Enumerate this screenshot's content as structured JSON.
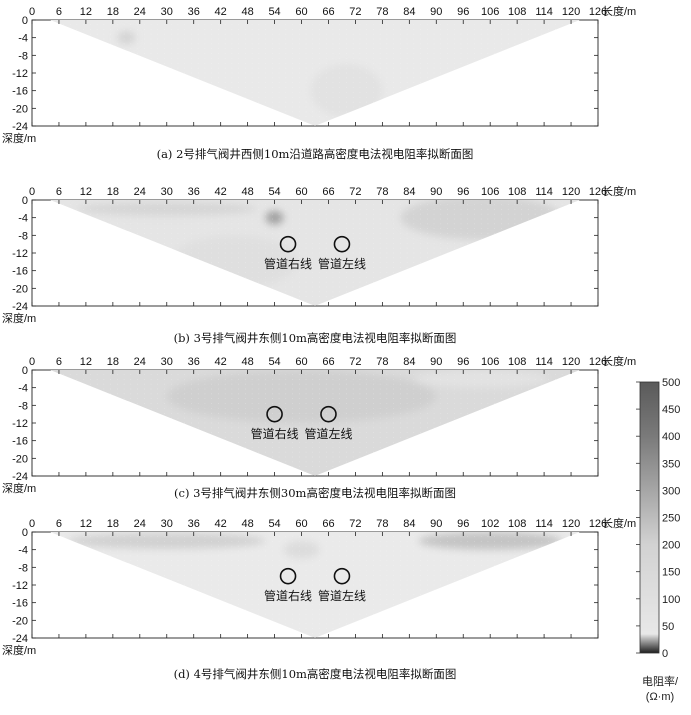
{
  "chart_data": [
    {
      "type": "heatmap",
      "panel": "a",
      "caption": "(a) 2号排气阀井西侧10m沿道路高密度电法视电阻率拟断面图",
      "xlabel": "长度/m",
      "ylabel": "深度/m",
      "x_ticks": [
        "0",
        "6",
        "12",
        "18",
        "24",
        "30",
        "36",
        "42",
        "48",
        "54",
        "60",
        "66",
        "72",
        "78",
        "84",
        "90",
        "96",
        "106",
        "108",
        "114",
        "120",
        "126"
      ],
      "y_ticks": [
        "0",
        "-4",
        "-8",
        "-12",
        "-16",
        "-20",
        "-24"
      ],
      "xlim": [
        0,
        126
      ],
      "ylim": [
        -24,
        0
      ],
      "section_triangle": {
        "left_x": 4,
        "right_x": 122,
        "apex_x": 63,
        "apex_depth": -24
      },
      "base_resistivity": 40,
      "anomalies": [
        {
          "x": 21,
          "depth": -4,
          "rx": 2,
          "ry": 1.5,
          "resistivity": 150
        },
        {
          "x": 70,
          "depth": -16,
          "rx": 8,
          "ry": 6,
          "resistivity": 80
        }
      ],
      "annotations": []
    },
    {
      "type": "heatmap",
      "panel": "b",
      "caption": "(b) 3号排气阀井东侧10m高密度电法视电阻率拟断面图",
      "xlabel": "长度/m",
      "ylabel": "深度/m",
      "x_ticks": [
        "0",
        "6",
        "12",
        "18",
        "24",
        "30",
        "36",
        "42",
        "48",
        "54",
        "60",
        "66",
        "72",
        "78",
        "84",
        "90",
        "96",
        "106",
        "108",
        "114",
        "120",
        "126"
      ],
      "y_ticks": [
        "0",
        "-4",
        "-8",
        "-12",
        "-16",
        "-20",
        "-24"
      ],
      "xlim": [
        0,
        126
      ],
      "ylim": [
        -24,
        0
      ],
      "section_triangle": {
        "left_x": 4,
        "right_x": 122,
        "apex_x": 63,
        "apex_depth": -24
      },
      "base_resistivity": 60,
      "anomalies": [
        {
          "x": 30,
          "depth": -2,
          "rx": 20,
          "ry": 1.5,
          "resistivity": 140
        },
        {
          "x": 100,
          "depth": -4,
          "rx": 18,
          "ry": 5,
          "resistivity": 150
        },
        {
          "x": 54,
          "depth": -4,
          "rx": 2,
          "ry": 1.5,
          "resistivity": 280
        },
        {
          "x": 45,
          "depth": -14,
          "rx": 14,
          "ry": 6,
          "resistivity": 90
        }
      ],
      "annotations": [
        {
          "label": "管道右线",
          "x": 57,
          "depth": -10
        },
        {
          "label": "管道左线",
          "x": 69,
          "depth": -10
        }
      ]
    },
    {
      "type": "heatmap",
      "panel": "c",
      "caption": "(c) 3号排气阀井东侧30m高密度电法视电阻率拟断面图",
      "xlabel": "长度/m",
      "ylabel": "深度/m",
      "x_ticks": [
        "0",
        "6",
        "12",
        "18",
        "24",
        "30",
        "36",
        "42",
        "48",
        "54",
        "60",
        "66",
        "72",
        "78",
        "84",
        "90",
        "96",
        "106",
        "108",
        "114",
        "120",
        "126"
      ],
      "y_ticks": [
        "0",
        "-4",
        "-8",
        "-12",
        "-16",
        "-20",
        "-24"
      ],
      "xlim": [
        0,
        126
      ],
      "ylim": [
        -24,
        0
      ],
      "section_triangle": {
        "left_x": 4,
        "right_x": 122,
        "apex_x": 63,
        "apex_depth": -24
      },
      "base_resistivity": 110,
      "anomalies": [
        {
          "x": 60,
          "depth": -6,
          "rx": 30,
          "ry": 6,
          "resistivity": 160
        },
        {
          "x": 100,
          "depth": -2,
          "rx": 15,
          "ry": 2,
          "resistivity": 70
        }
      ],
      "annotations": [
        {
          "label": "管道右线",
          "x": 54,
          "depth": -10
        },
        {
          "label": "管道左线",
          "x": 66,
          "depth": -10
        }
      ]
    },
    {
      "type": "heatmap",
      "panel": "d",
      "caption": "(d) 4号排气阀井东侧10m高密度电法视电阻率拟断面图",
      "xlabel": "长度/m",
      "ylabel": "深度/m",
      "x_ticks": [
        "0",
        "6",
        "12",
        "18",
        "24",
        "30",
        "36",
        "42",
        "48",
        "54",
        "60",
        "66",
        "72",
        "78",
        "84",
        "90",
        "96",
        "102",
        "108",
        "114",
        "120",
        "126"
      ],
      "y_ticks": [
        "0",
        "-4",
        "-8",
        "-12",
        "-16",
        "-20",
        "-24"
      ],
      "xlim": [
        0,
        126
      ],
      "ylim": [
        -24,
        0
      ],
      "section_triangle": {
        "left_x": 4,
        "right_x": 122,
        "apex_x": 63,
        "apex_depth": -24
      },
      "base_resistivity": 35,
      "anomalies": [
        {
          "x": 30,
          "depth": -2,
          "rx": 22,
          "ry": 1.8,
          "resistivity": 160
        },
        {
          "x": 102,
          "depth": -2,
          "rx": 16,
          "ry": 2,
          "resistivity": 190
        },
        {
          "x": 60,
          "depth": -4,
          "rx": 4,
          "ry": 2,
          "resistivity": 110
        }
      ],
      "annotations": [
        {
          "label": "管道右线",
          "x": 57,
          "depth": -10
        },
        {
          "label": "管道左线",
          "x": 69,
          "depth": -10
        }
      ]
    }
  ],
  "colorbar": {
    "ticks": [
      "500",
      "450",
      "400",
      "350",
      "300",
      "250",
      "200",
      "150",
      "100",
      "50",
      "0"
    ],
    "min": 0,
    "max": 500,
    "title_line1": "电阻率/",
    "title_line2": "(Ω·m)",
    "gradient": [
      "#1e1e1e",
      "#e8e8e8",
      "#d2d2d2",
      "#a6a6a6",
      "#7a7a7a",
      "#5a5a5a"
    ]
  }
}
